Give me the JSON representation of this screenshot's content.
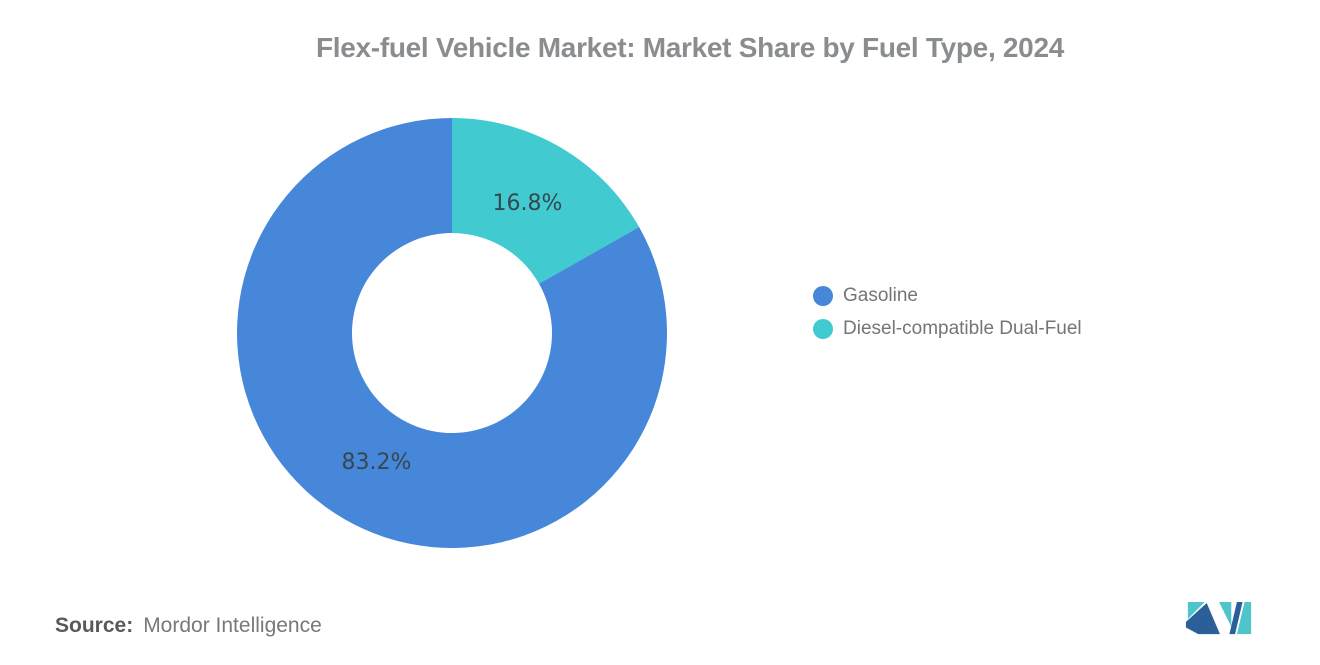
{
  "chart_data": {
    "type": "pie",
    "subtype": "donut",
    "title": "Flex-fuel Vehicle Market: Market Share by Fuel Type, 2024",
    "unit": "%",
    "start_angle_deg": 0,
    "direction": "clockwise",
    "inner_radius_ratio": 0.465,
    "legend_position": "right",
    "label_color": "#37474F",
    "series": [
      {
        "name": "Gasoline",
        "value": 83.2,
        "label": "83.2%",
        "color": "#4687DA"
      },
      {
        "name": "Diesel-compatible Dual-Fuel",
        "value": 16.8,
        "label": "16.8%",
        "color": "#41CBD1"
      }
    ]
  },
  "source": {
    "label": "Source:",
    "text": "Mordor Intelligence"
  },
  "logo": {
    "name": "mordor-intelligence-logo",
    "navy": "#2B5F99",
    "teal": "#4FC4CB"
  }
}
